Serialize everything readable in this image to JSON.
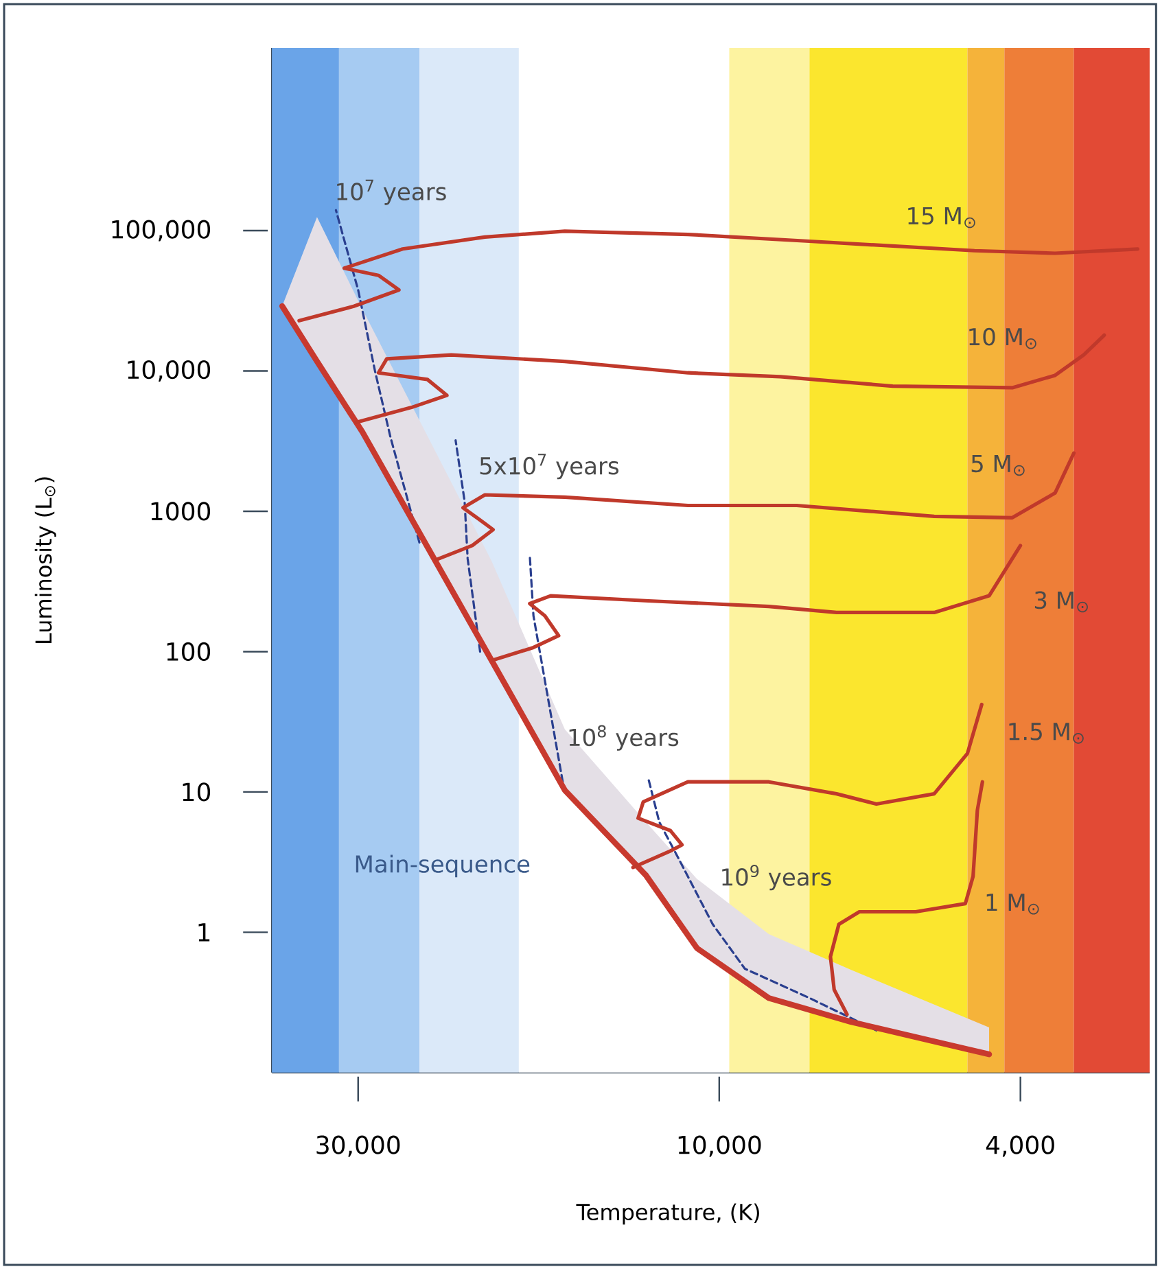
{
  "chart_data": {
    "type": "line",
    "xlabel": "Temperature, (K)",
    "ylabel": "Luminosity (L$_{⊙}$)",
    "log": "xy",
    "xlim": [
      39000,
      2700
    ],
    "ylim": [
      0.1,
      2000000
    ],
    "xticks": [
      {
        "value": 30000,
        "label": "30,000"
      },
      {
        "value": 10000,
        "label": "10,000"
      },
      {
        "value": 4000,
        "label": "4,000"
      }
    ],
    "yticks": [
      {
        "value": 100000,
        "label": "100,000"
      },
      {
        "value": 10000,
        "label": "10,000"
      },
      1000,
      100,
      10,
      1
    ],
    "bands": [
      {
        "axis": "x",
        "from": 39000,
        "to": 31800,
        "color": "#6aa4e8"
      },
      {
        "axis": "x",
        "from": 31800,
        "to": 24900,
        "color": "#a6cbf2"
      },
      {
        "axis": "x",
        "from": 24900,
        "to": 18400,
        "color": "#dbe9f9"
      },
      {
        "axis": "x",
        "from": 18400,
        "to": 9700,
        "color": "#ffffff"
      },
      {
        "axis": "x",
        "from": 9700,
        "to": 7600,
        "color": "#fdf3a0"
      },
      {
        "axis": "x",
        "from": 7600,
        "to": 4700,
        "color": "#fbe62e"
      },
      {
        "axis": "x",
        "from": 4700,
        "to": 4200,
        "color": "#f5b33a"
      },
      {
        "axis": "x",
        "from": 4200,
        "to": 3400,
        "color": "#ee7e38"
      },
      {
        "axis": "x",
        "from": 3400,
        "to": 2700,
        "color": "#e24a35"
      }
    ],
    "series": [
      {
        "color": "#c8392e",
        "x": [
          37800,
          34000,
          29600,
          20000,
          16000,
          12500,
          10700,
          8600,
          6700,
          4400
        ],
        "values": [
          29000,
          11700,
          3660,
          87,
          10.3,
          2.55,
          0.77,
          0.34,
          0.23,
          0.135
        ],
        "lower": [
          29000,
          11700,
          3660,
          87,
          10.3,
          2.55,
          0.77,
          0.34,
          0.23,
          0.135
        ],
        "upper": [
          29000,
          125000,
          27400,
          445,
          28,
          6.1,
          2.4,
          0.97,
          0.54,
          0.21
        ]
      },
      {
        "name": "15 M$_{⊙}$",
        "color": "#c0392b",
        "x": [
          35900,
          30400,
          26500,
          28200,
          31300,
          26200,
          20400,
          16000,
          11000,
          7600,
          4600,
          3600,
          2800
        ],
        "values": [
          22800,
          28900,
          37800,
          48000,
          54000,
          74000,
          90000,
          99000,
          94000,
          84000,
          72000,
          69000,
          74000
        ]
      },
      {
        "name": "10 M$_{⊙}$",
        "color": "#c0392b",
        "x": [
          30200,
          25500,
          22900,
          24300,
          28200,
          27500,
          22600,
          16000,
          11000,
          8300,
          5900,
          4100,
          3600,
          3300,
          3100
        ],
        "values": [
          4300,
          5500,
          6700,
          8700,
          9700,
          12200,
          13000,
          11700,
          9700,
          9100,
          7800,
          7600,
          9300,
          13000,
          18000
        ]
      },
      {
        "name": "5 M$_{⊙}$",
        "color": "#c0392b",
        "x": [
          23700,
          21200,
          19900,
          20900,
          21800,
          20400,
          16000,
          11000,
          7900,
          5200,
          4100,
          3600,
          3400
        ],
        "values": [
          450,
          570,
          740,
          900,
          1060,
          1310,
          1260,
          1100,
          1100,
          920,
          900,
          1350,
          2600
        ]
      },
      {
        "name": "3 M$_{⊙}$",
        "color": "#c0392b",
        "x": [
          19900,
          17600,
          16300,
          17000,
          17800,
          16700,
          12400,
          8600,
          7000,
          5200,
          4400,
          4000
        ],
        "values": [
          87,
          107,
          130,
          180,
          220,
          250,
          230,
          210,
          190,
          190,
          250,
          570
        ]
      },
      {
        "name": "1.5 M$_{⊙}$",
        "color": "#c0392b",
        "x": [
          13000,
          11600,
          11200,
          11600,
          12800,
          12600,
          11000,
          8600,
          7000,
          6200,
          5200,
          4700,
          4500
        ],
        "values": [
          2.9,
          3.8,
          4.2,
          5.3,
          6.5,
          8.5,
          11.8,
          11.8,
          9.7,
          8.2,
          9.7,
          18.8,
          42
        ]
      },
      {
        "name": "1 M$_{⊙}$",
        "color": "#c0392b",
        "x": [
          6780,
          7050,
          7130,
          6950,
          6530,
          5500,
          4730,
          4620,
          4560,
          4490
        ],
        "values": [
          0.26,
          0.39,
          0.67,
          1.14,
          1.4,
          1.4,
          1.6,
          2.5,
          7.4,
          11.8
        ]
      },
      {
        "name": "10$^{7}$ years",
        "color": "#2a3f8f",
        "line_style": "dashed",
        "x": [
          32100,
          30000,
          28500,
          27200,
          24900
        ],
        "values": [
          140000,
          37800,
          10000,
          3400,
          600
        ]
      },
      {
        "name": "5x10$^{7}$ years",
        "color": "#2a3f8f",
        "line_style": "dashed",
        "x": [
          22300,
          21700,
          21500,
          20700
        ],
        "values": [
          3200,
          1180,
          460,
          100
        ]
      },
      {
        "name": "10$^{8}$ years",
        "color": "#2a3f8f",
        "line_style": "dashed",
        "x": [
          17800,
          17600,
          16100
        ],
        "values": [
          490,
          180,
          11.8
        ]
      },
      {
        "name": "10$^{9}$ years",
        "color": "#2a3f8f",
        "line_style": "dashed",
        "x": [
          12400,
          12000,
          11300,
          10200,
          9250,
          7600,
          6200
        ],
        "values": [
          12.3,
          6.1,
          3.3,
          1.14,
          0.55,
          0.34,
          0.2
        ]
      }
    ],
    "annotations": [
      "Main-sequence"
    ]
  }
}
